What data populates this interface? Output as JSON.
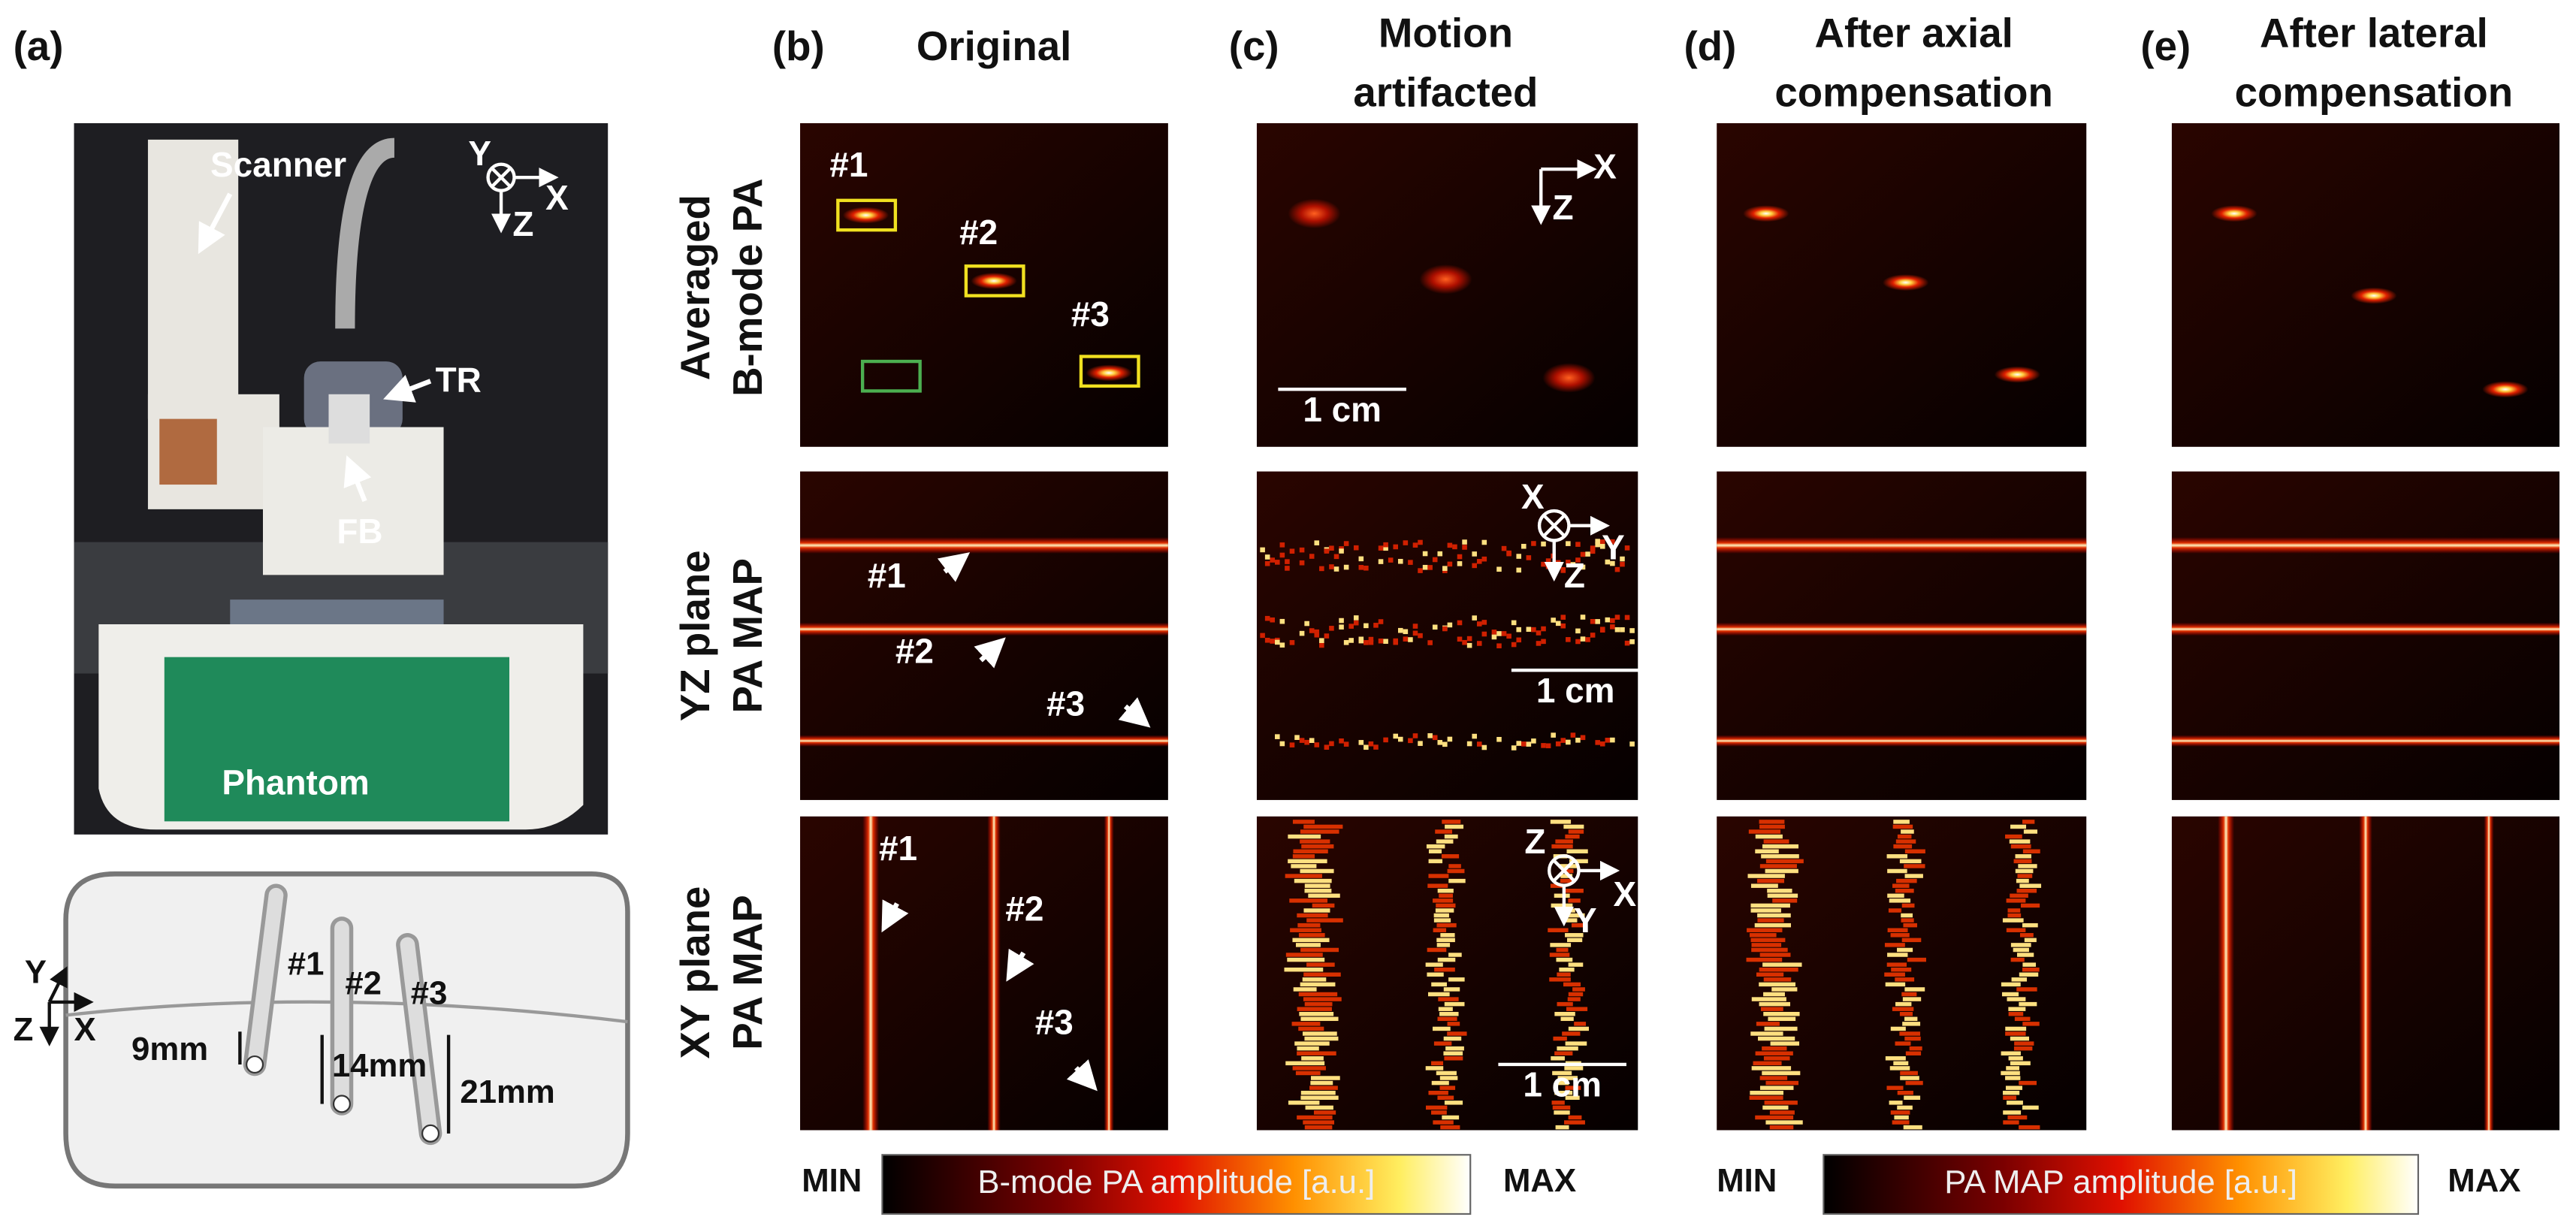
{
  "panel_labels": [
    "(a)",
    "(b)",
    "(c)",
    "(d)",
    "(e)"
  ],
  "column_titles": [
    [
      "Original"
    ],
    [
      "Motion",
      "artifacted"
    ],
    [
      "After axial",
      "compensation"
    ],
    [
      "After lateral",
      "compensation"
    ]
  ],
  "row_titles": [
    [
      "Averaged",
      "B-mode PA"
    ],
    [
      "YZ plane",
      "PA MAP"
    ],
    [
      "XY plane",
      "PA MAP"
    ]
  ],
  "photo_labels": [
    "Scanner",
    "TR",
    "FB",
    "Phantom"
  ],
  "photo_axes": [
    "Y",
    "Z",
    "X"
  ],
  "diagram": {
    "targets": [
      "#1",
      "#2",
      "#3"
    ],
    "depths": [
      "9mm",
      "14mm",
      "21mm"
    ],
    "axes": [
      "Y",
      "Z",
      "X"
    ]
  },
  "original_annotations": [
    [
      "#1",
      "#2",
      "#3"
    ],
    [
      "#1",
      "#2",
      "#3"
    ],
    [
      "#1",
      "#2",
      "#3"
    ]
  ],
  "motion_axes": [
    [
      "Z",
      "X"
    ],
    [
      "X",
      "Z",
      "Y"
    ],
    [
      "Z",
      "Y",
      "X"
    ]
  ],
  "scale_bars": [
    "1 cm",
    "1 cm",
    "1 cm"
  ],
  "colorbars": [
    {
      "min": "MIN",
      "label": "B-mode PA amplitude [a.u.]",
      "max": "MAX"
    },
    {
      "min": "MIN",
      "label": "PA MAP amplitude [a.u.]",
      "max": "MAX"
    }
  ]
}
